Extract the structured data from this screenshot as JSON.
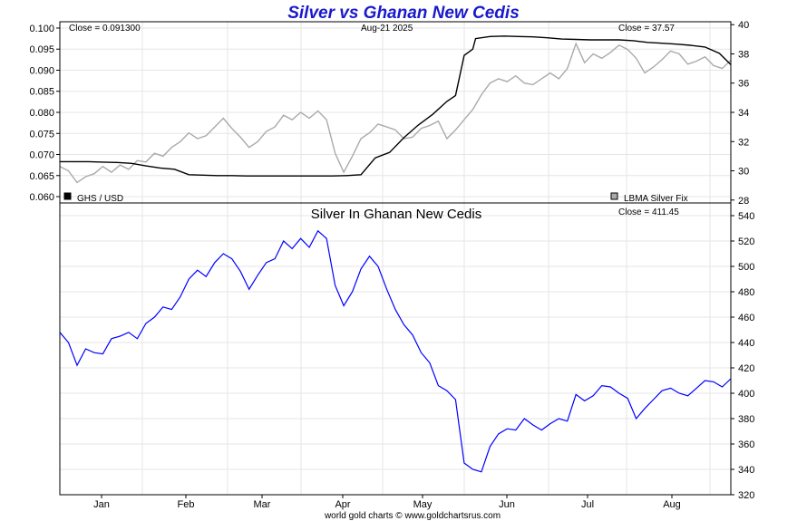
{
  "header": {
    "title": "Silver vs Ghanan New Cedis",
    "date": "Aug-21  2025",
    "footer": "world gold charts © www.goldchartsrus.com"
  },
  "colors": {
    "title": "#1a1acc",
    "ghs": "#000000",
    "silver": "#aaaaaa",
    "ratio": "#0000ff"
  },
  "chart_data": [
    {
      "type": "line",
      "title": "Silver vs Ghanan New Cedis",
      "close_left": "Close = 0.091300",
      "close_right": "Close = 37.57",
      "date_label": "Aug-21  2025",
      "legend": [
        {
          "label": "GHS / USD",
          "swatch": "#000000"
        },
        {
          "label": "LBMA Silver Fix",
          "swatch": "#aaaaaa"
        }
      ],
      "x_labels": [
        "Jan",
        "Feb",
        "Mar",
        "Apr",
        "May",
        "Jun",
        "Jul",
        "Aug"
      ],
      "y_left": {
        "ticks": [
          "0.060",
          "0.065",
          "0.070",
          "0.075",
          "0.080",
          "0.085",
          "0.090",
          "0.095",
          "0.100"
        ],
        "ylim": [
          0.0585,
          0.1015
        ]
      },
      "y_right": {
        "ticks": [
          "28",
          "30",
          "32",
          "34",
          "36",
          "38",
          "40"
        ],
        "ylim": [
          27.8,
          40.2
        ]
      },
      "series": [
        {
          "name": "GHS / USD",
          "axis": "left",
          "color": "#000000",
          "x": [
            0,
            5,
            10,
            15,
            20,
            25,
            30,
            35,
            40,
            45,
            50,
            55,
            60,
            65,
            70,
            75,
            80,
            85,
            90,
            95,
            100,
            105,
            110,
            115,
            120,
            125,
            130,
            135,
            138,
            141,
            144,
            145,
            150,
            155,
            160,
            165,
            170,
            175,
            180,
            185,
            190,
            195,
            200,
            205,
            210,
            215,
            220,
            225,
            230,
            234
          ],
          "values": [
            0.0683,
            0.0683,
            0.0683,
            0.0682,
            0.0681,
            0.0679,
            0.0673,
            0.0668,
            0.0665,
            0.0652,
            0.0651,
            0.065,
            0.065,
            0.0649,
            0.0649,
            0.0649,
            0.0649,
            0.0649,
            0.0649,
            0.0649,
            0.065,
            0.0652,
            0.0692,
            0.0705,
            0.074,
            0.077,
            0.0795,
            0.0826,
            0.084,
            0.0935,
            0.095,
            0.0975,
            0.098,
            0.0981,
            0.098,
            0.0979,
            0.0977,
            0.0974,
            0.0973,
            0.0972,
            0.0972,
            0.0972,
            0.097,
            0.0966,
            0.0964,
            0.0962,
            0.0959,
            0.0955,
            0.094,
            0.0913
          ]
        },
        {
          "name": "LBMA Silver Fix",
          "axis": "right",
          "color": "#aaaaaa",
          "x": [
            0,
            3,
            6,
            9,
            12,
            15,
            18,
            21,
            24,
            27,
            30,
            33,
            36,
            39,
            42,
            45,
            48,
            51,
            54,
            57,
            60,
            63,
            66,
            69,
            72,
            75,
            78,
            81,
            84,
            87,
            90,
            93,
            96,
            99,
            102,
            105,
            108,
            111,
            114,
            117,
            120,
            123,
            126,
            129,
            132,
            135,
            138,
            141,
            144,
            147,
            150,
            153,
            156,
            159,
            162,
            165,
            168,
            171,
            174,
            177,
            180,
            183,
            186,
            189,
            192,
            195,
            198,
            201,
            204,
            207,
            210,
            213,
            216,
            219,
            222,
            225,
            228,
            231,
            234
          ],
          "values": [
            30.3,
            30.0,
            29.2,
            29.6,
            29.8,
            30.3,
            29.9,
            30.4,
            30.1,
            30.7,
            30.6,
            31.2,
            31.0,
            31.6,
            32.0,
            32.6,
            32.2,
            32.4,
            33.0,
            33.6,
            32.9,
            32.3,
            31.6,
            32.0,
            32.7,
            33.0,
            33.8,
            33.5,
            34.0,
            33.6,
            34.1,
            33.5,
            31.2,
            29.9,
            31.0,
            32.2,
            32.6,
            33.2,
            33.0,
            32.8,
            32.2,
            32.3,
            32.9,
            33.1,
            33.4,
            32.2,
            32.8,
            33.5,
            34.2,
            35.2,
            36.0,
            36.3,
            36.1,
            36.5,
            36.0,
            35.9,
            36.3,
            36.7,
            36.3,
            37.0,
            38.7,
            37.4,
            38.0,
            37.7,
            38.1,
            38.6,
            38.3,
            37.7,
            36.7,
            37.1,
            37.6,
            38.2,
            38.0,
            37.3,
            37.5,
            37.8,
            37.2,
            37.0,
            37.57
          ]
        }
      ]
    },
    {
      "type": "line",
      "title": "Silver In Ghanan New Cedis",
      "close": "Close = 411.45",
      "x_labels": [
        "Jan",
        "Feb",
        "Mar",
        "Apr",
        "May",
        "Jun",
        "Jul",
        "Aug"
      ],
      "y_right": {
        "ticks": [
          "320",
          "340",
          "360",
          "380",
          "400",
          "420",
          "440",
          "460",
          "480",
          "500",
          "520",
          "540"
        ],
        "ylim": [
          320,
          550
        ]
      },
      "series": [
        {
          "name": "Silver In Ghanan New Cedis",
          "color": "#0000ff",
          "x": [
            0,
            3,
            6,
            9,
            12,
            15,
            18,
            21,
            24,
            27,
            30,
            33,
            36,
            39,
            42,
            45,
            48,
            51,
            54,
            57,
            60,
            63,
            66,
            69,
            72,
            75,
            78,
            81,
            84,
            87,
            90,
            93,
            96,
            99,
            102,
            105,
            108,
            111,
            114,
            117,
            120,
            123,
            126,
            129,
            132,
            135,
            138,
            141,
            144,
            147,
            150,
            153,
            156,
            159,
            162,
            165,
            168,
            171,
            174,
            177,
            180,
            183,
            186,
            189,
            192,
            195,
            198,
            201,
            204,
            207,
            210,
            213,
            216,
            219,
            222,
            225,
            228,
            231,
            234
          ],
          "values": [
            448,
            440,
            422,
            435,
            432,
            431,
            443,
            445,
            448,
            443,
            455,
            460,
            468,
            466,
            476,
            490,
            497,
            492,
            503,
            510,
            506,
            496,
            482,
            493,
            503,
            506,
            520,
            514,
            522,
            515,
            528,
            522,
            485,
            469,
            480,
            498,
            508,
            500,
            482,
            466,
            454,
            446,
            432,
            424,
            406,
            402,
            395,
            345,
            340,
            338,
            358,
            368,
            372,
            371,
            380,
            375,
            371,
            376,
            380,
            378,
            399,
            394,
            398,
            406,
            405,
            400,
            396,
            380,
            388,
            395,
            402,
            404,
            400,
            398,
            404,
            410,
            409,
            405,
            411.45
          ]
        }
      ]
    }
  ]
}
